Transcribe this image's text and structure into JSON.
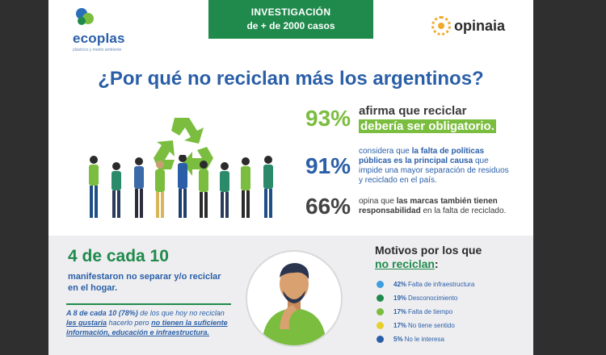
{
  "header": {
    "logo_left": {
      "name": "ecoplas",
      "tagline": "plásticos y medio ambiente"
    },
    "badge": {
      "line1": "INVESTIGACIÓN",
      "line2": "de + de 2000 casos"
    },
    "logo_right": {
      "name": "opinaia"
    }
  },
  "title": "¿Por qué no reciclan más los argentinos?",
  "stats": [
    {
      "pct": "93%",
      "text_pre": "afirma que reciclar",
      "text_hl": "debería ser obligatorio."
    },
    {
      "pct": "91%",
      "text_pre": "considera que ",
      "text_bold": "la falta de políticas públicas es la principal causa",
      "text_post": " que impide una mayor separación de residuos y reciclado en el país."
    },
    {
      "pct": "66%",
      "text_pre": "opina que ",
      "text_bold": "las marcas también tienen responsabilidad",
      "text_post": " en la falta de reciclado."
    }
  ],
  "bottom": {
    "headline": "4 de cada 10",
    "subline": "manifestaron no separar y/o reciclar en el hogar.",
    "note": {
      "p1_bold": "A 8 de cada 10 (78%)",
      "p1": " de los que hoy no reciclan ",
      "p2_underline": "les gustaría",
      "p2": " hacerlo pero ",
      "p3_underline": "no tienen la suficiente información, educación e infraestructura."
    },
    "reasons_title": "Motivos por los que",
    "reasons_title_u": "no reciclan",
    "reasons_title_colon": ":",
    "reasons": [
      {
        "pct": "42%",
        "label": "Falta de infraestructura",
        "color": "#3d9ee0"
      },
      {
        "pct": "19%",
        "label": "Desconocimiento",
        "color": "#1f8a4c"
      },
      {
        "pct": "17%",
        "label": "Falta de tiempo",
        "color": "#7bbd3f"
      },
      {
        "pct": "17%",
        "label": "No tiene sentido",
        "color": "#e8d02a"
      },
      {
        "pct": "5%",
        "label": "No le interesa",
        "color": "#2a5fa8"
      }
    ]
  },
  "colors": {
    "brand_blue": "#2a5fa8",
    "brand_green": "#1f8a4c",
    "light_green": "#7bbd3f"
  }
}
